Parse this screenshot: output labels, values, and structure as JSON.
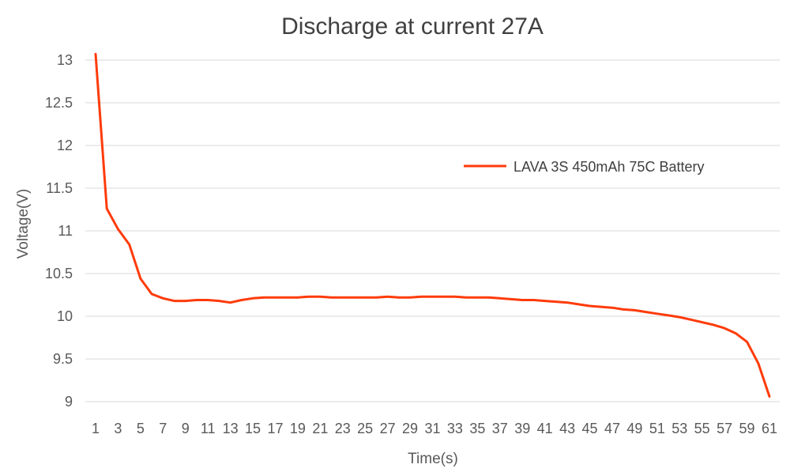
{
  "chart_data": {
    "type": "line",
    "title": "Discharge at current 27A",
    "xlabel": "Time(s)",
    "ylabel": "Voltage(V)",
    "ylim": [
      9,
      13
    ],
    "xlim": [
      1,
      61
    ],
    "y_ticks": [
      "9",
      "9.5",
      "10",
      "10.5",
      "11",
      "11.5",
      "12",
      "12.5",
      "13"
    ],
    "x_ticks": [
      "1",
      "3",
      "5",
      "7",
      "9",
      "11",
      "13",
      "15",
      "17",
      "19",
      "21",
      "23",
      "25",
      "27",
      "29",
      "31",
      "33",
      "35",
      "37",
      "39",
      "41",
      "43",
      "45",
      "47",
      "49",
      "51",
      "53",
      "55",
      "57",
      "59",
      "61"
    ],
    "grid": "horizontal",
    "legend_position": "right",
    "series": [
      {
        "name": "LAVA 3S 450mAh 75C Battery",
        "color": "#ff3b0a",
        "x": [
          1,
          2,
          3,
          4,
          5,
          6,
          7,
          8,
          9,
          10,
          11,
          12,
          13,
          14,
          15,
          16,
          17,
          18,
          19,
          20,
          21,
          22,
          23,
          24,
          25,
          26,
          27,
          28,
          29,
          30,
          31,
          32,
          33,
          34,
          35,
          36,
          37,
          38,
          39,
          40,
          41,
          42,
          43,
          44,
          45,
          46,
          47,
          48,
          49,
          50,
          51,
          52,
          53,
          54,
          55,
          56,
          57,
          58,
          59,
          60,
          61
        ],
        "values": [
          13.07,
          11.26,
          11.02,
          10.84,
          10.44,
          10.26,
          10.21,
          10.18,
          10.18,
          10.19,
          10.19,
          10.18,
          10.16,
          10.19,
          10.21,
          10.22,
          10.22,
          10.22,
          10.22,
          10.23,
          10.23,
          10.22,
          10.22,
          10.22,
          10.22,
          10.22,
          10.23,
          10.22,
          10.22,
          10.23,
          10.23,
          10.23,
          10.23,
          10.22,
          10.22,
          10.22,
          10.21,
          10.2,
          10.19,
          10.19,
          10.18,
          10.17,
          10.16,
          10.14,
          10.12,
          10.11,
          10.1,
          10.08,
          10.07,
          10.05,
          10.03,
          10.01,
          9.99,
          9.96,
          9.93,
          9.9,
          9.86,
          9.8,
          9.7,
          9.45,
          9.06
        ]
      }
    ]
  }
}
